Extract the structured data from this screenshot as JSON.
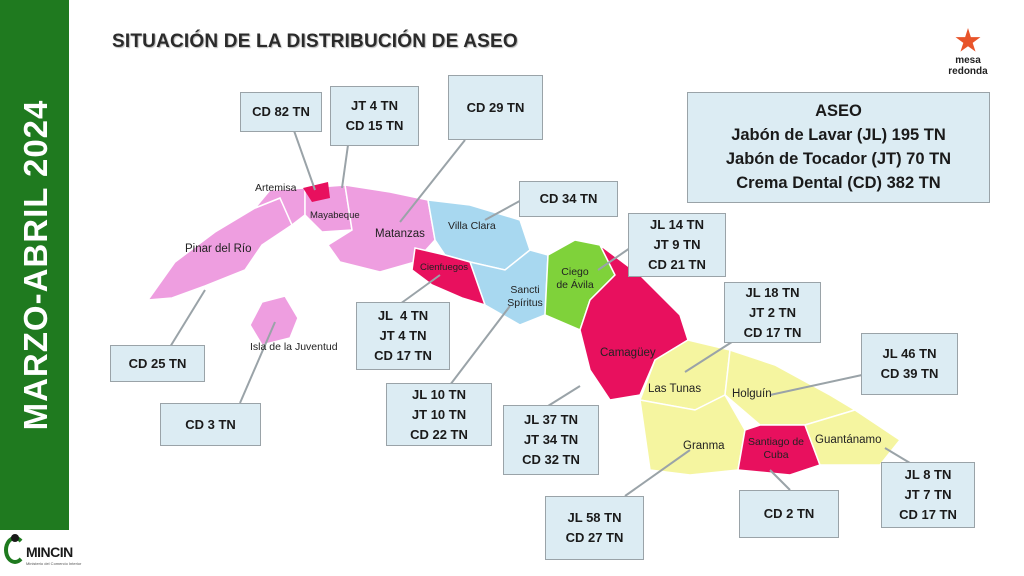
{
  "sidebar": {
    "text": "MARZO-ABRIL 2024"
  },
  "title": "SITUACIÓN DE LA DISTRIBUCIÓN DE ASEO",
  "logo": {
    "line1": "mesa",
    "line2": "redonda"
  },
  "footer": {
    "logo_text": "MINCIN",
    "logo_sub": "Ministerio del Comercio Interior"
  },
  "legend": {
    "heading": "ASEO",
    "lines": [
      "Jabón de Lavar (JL) 195 TN",
      "Jabón de Tocador (JT) 70 TN",
      "Crema Dental (CD) 382 TN"
    ]
  },
  "colors": {
    "sidebar": "#1f7a1f",
    "pink": "#ee9ee0",
    "blue": "#a8d8f0",
    "green": "#7fd23a",
    "magenta": "#e8105e",
    "yellow": "#f5f5a0",
    "callout": "#dcecf3"
  },
  "provinces": [
    {
      "name": "Pinar del Río"
    },
    {
      "name": "Artemisa"
    },
    {
      "name": "Mayabeque"
    },
    {
      "name": "Matanzas"
    },
    {
      "name": "Villa Clara"
    },
    {
      "name": "Cienfuegos"
    },
    {
      "name": "Sancti Spíritus"
    },
    {
      "name": "Ciego de Ávila"
    },
    {
      "name": "Camagüey"
    },
    {
      "name": "Las Tunas"
    },
    {
      "name": "Holguín"
    },
    {
      "name": "Granma"
    },
    {
      "name": "Santiago de Cuba"
    },
    {
      "name": "Guantánamo"
    },
    {
      "name": "Isla de la Juventud"
    }
  ],
  "callouts": [
    {
      "lines": [
        "CD 82 TN"
      ]
    },
    {
      "lines": [
        "JT 4 TN",
        "CD 15 TN"
      ]
    },
    {
      "lines": [
        "CD 29 TN"
      ]
    },
    {
      "lines": [
        "CD 34 TN"
      ]
    },
    {
      "lines": [
        "JL 14 TN",
        "JT 9 TN",
        "CD 21 TN"
      ]
    },
    {
      "lines": [
        "JL  4 TN",
        "JT 4 TN",
        "CD 17 TN"
      ]
    },
    {
      "lines": [
        "CD 25 TN"
      ]
    },
    {
      "lines": [
        "CD 3 TN"
      ]
    },
    {
      "lines": [
        "JL 10 TN",
        "JT 10 TN",
        "CD 22 TN"
      ]
    },
    {
      "lines": [
        "JL 18 TN",
        "JT 2 TN",
        "CD 17 TN"
      ]
    },
    {
      "lines": [
        "JL 37 TN",
        "JT 34 TN",
        "CD 32 TN"
      ]
    },
    {
      "lines": [
        "JL 46 TN",
        "CD 39 TN"
      ]
    },
    {
      "lines": [
        "JL 58 TN",
        "CD 27 TN"
      ]
    },
    {
      "lines": [
        "CD 2 TN"
      ]
    },
    {
      "lines": [
        "JL 8 TN",
        "JT 7 TN",
        "CD 17 TN"
      ]
    }
  ]
}
